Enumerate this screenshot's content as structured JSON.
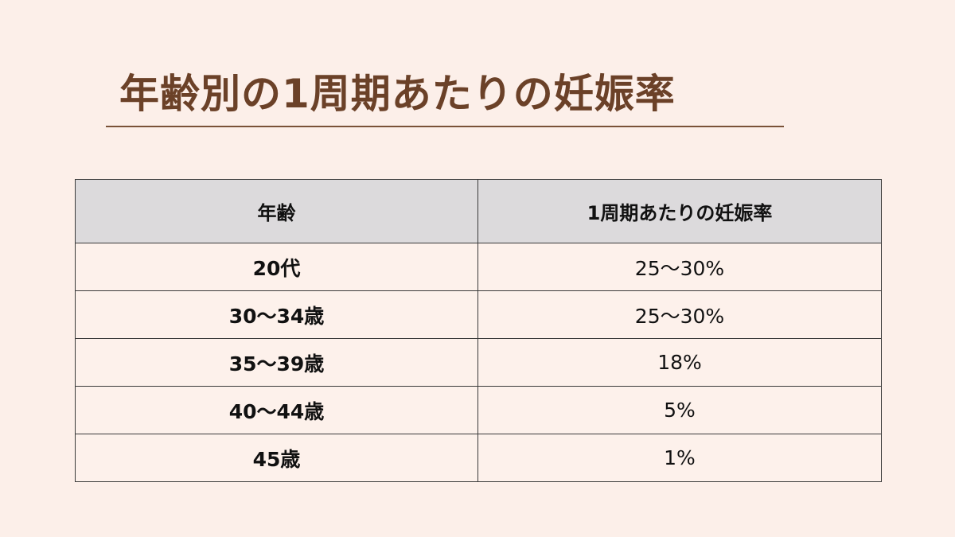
{
  "title": "年齢別の1周期あたりの妊娠率",
  "table": {
    "headers": [
      "年齢",
      "1周期あたりの妊娠率"
    ],
    "rows": [
      {
        "age": "20代",
        "rate": "25～30%"
      },
      {
        "age": "30～34歳",
        "rate": "25～30%"
      },
      {
        "age": "35～39歳",
        "rate": "18%"
      },
      {
        "age": "40～44歳",
        "rate": "5%"
      },
      {
        "age": "45歳",
        "rate": "1%"
      }
    ]
  },
  "colors": {
    "background": "#fcefe9",
    "title": "#6b4128",
    "header_bg": "#dcdadc"
  }
}
